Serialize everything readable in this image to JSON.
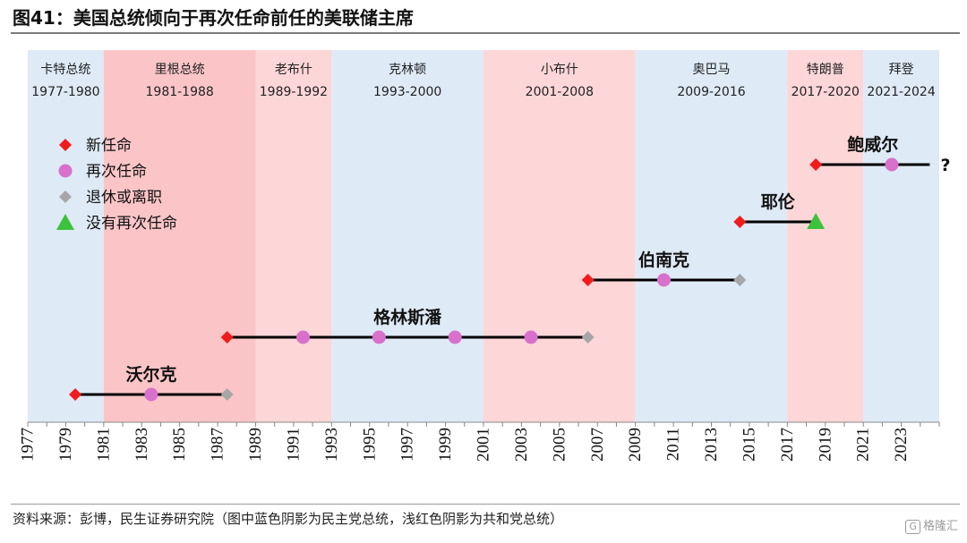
{
  "title": "图41：美国总统倾向于再次任命前任的美联储主席",
  "source": "资料来源：彭博，民生证券研究院（图中蓝色阴影为民主党总统，浅红色阴影为共和党总统）",
  "watermark": "格隆汇",
  "colors": {
    "democrat": "#deeaf6",
    "republican_dark": "#fbc5c7",
    "republican_light": "#fdd6d8",
    "new": "#f21b1b",
    "reappoint": "#d870cc",
    "retire": "#a6a6a6",
    "not_reappointed": "#3cc23c",
    "line": "#000000"
  },
  "chart_data": {
    "type": "timeline",
    "xlim": [
      1977,
      2025
    ],
    "x_ticks": [
      "1977",
      "1979",
      "1981",
      "1983",
      "1985",
      "1987",
      "1989",
      "1991",
      "1993",
      "1995",
      "1997",
      "1999",
      "2001",
      "2003",
      "2005",
      "2007",
      "2009",
      "2011",
      "2013",
      "2015",
      "2017",
      "2019",
      "2021",
      "2023"
    ],
    "presidents": [
      {
        "name": "卡特总统",
        "term": "1977-1980",
        "start": 1977,
        "end": 1981,
        "party": "democrat"
      },
      {
        "name": "里根总统",
        "term": "1981-1988",
        "start": 1981,
        "end": 1989,
        "party": "republican_dark"
      },
      {
        "name": "老布什",
        "term": "1989-1992",
        "start": 1989,
        "end": 1993,
        "party": "republican_light"
      },
      {
        "name": "克林顿",
        "term": "1993-2000",
        "start": 1993,
        "end": 2001,
        "party": "democrat"
      },
      {
        "name": "小布什",
        "term": "2001-2008",
        "start": 2001,
        "end": 2009,
        "party": "republican_light"
      },
      {
        "name": "奥巴马",
        "term": "2009-2016",
        "start": 2009,
        "end": 2017,
        "party": "democrat"
      },
      {
        "name": "特朗普",
        "term": "2017-2020",
        "start": 2017,
        "end": 2021,
        "party": "republican_light"
      },
      {
        "name": "拜登",
        "term": "2021-2024",
        "start": 2021,
        "end": 2025,
        "party": "democrat"
      }
    ],
    "legend": [
      {
        "key": "new",
        "label": "新任命",
        "shape": "diamond"
      },
      {
        "key": "reappoint",
        "label": "再次任命",
        "shape": "circle"
      },
      {
        "key": "retire",
        "label": "退休或离职",
        "shape": "diamond"
      },
      {
        "key": "not_reappointed",
        "label": "没有再次任命",
        "shape": "triangle"
      }
    ],
    "chairs": [
      {
        "name": "沃尔克",
        "level": 1,
        "start": 1979.5,
        "end": 1987.5,
        "events": [
          {
            "x": 1979.5,
            "type": "new"
          },
          {
            "x": 1983.5,
            "type": "reappoint"
          },
          {
            "x": 1987.5,
            "type": "retire"
          }
        ]
      },
      {
        "name": "格林斯潘",
        "level": 2,
        "start": 1987.5,
        "end": 2006.5,
        "events": [
          {
            "x": 1987.5,
            "type": "new"
          },
          {
            "x": 1991.5,
            "type": "reappoint"
          },
          {
            "x": 1995.5,
            "type": "reappoint"
          },
          {
            "x": 1999.5,
            "type": "reappoint"
          },
          {
            "x": 2003.5,
            "type": "reappoint"
          },
          {
            "x": 2006.5,
            "type": "retire"
          }
        ]
      },
      {
        "name": "伯南克",
        "level": 3,
        "start": 2006.5,
        "end": 2014.5,
        "events": [
          {
            "x": 2006.5,
            "type": "new"
          },
          {
            "x": 2010.5,
            "type": "reappoint"
          },
          {
            "x": 2014.5,
            "type": "retire"
          }
        ]
      },
      {
        "name": "耶伦",
        "level": 4,
        "start": 2014.5,
        "end": 2018.5,
        "events": [
          {
            "x": 2014.5,
            "type": "new"
          },
          {
            "x": 2018.5,
            "type": "not_reappointed"
          }
        ]
      },
      {
        "name": "鲍威尔",
        "level": 5,
        "start": 2018.5,
        "end": 2024.5,
        "events": [
          {
            "x": 2018.5,
            "type": "new"
          },
          {
            "x": 2022.5,
            "type": "reappoint"
          }
        ]
      }
    ],
    "open_end_marker": "?"
  }
}
